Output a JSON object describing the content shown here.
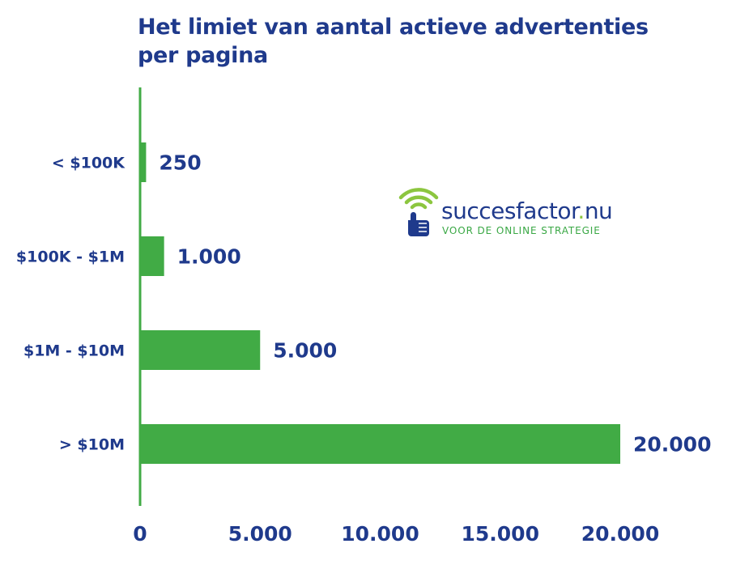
{
  "title_lines": [
    "Het limiet van aantal actieve advertenties",
    "per pagina"
  ],
  "logo": {
    "brand": "succesfactor",
    "dot": ".",
    "tld": "nu",
    "tagline": "VOOR DE ONLINE STRATEGIE"
  },
  "colors": {
    "bar": "#41ab45",
    "axis": "#41ab45",
    "text": "#1f3a8c",
    "logo_wifi": "#8cc63f"
  },
  "chart_data": {
    "type": "bar",
    "orientation": "horizontal",
    "title": "Het limiet van aantal actieve advertenties per pagina",
    "categories": [
      "< $100K",
      "$100K - $1M",
      "$1M - $10M",
      "> $10M"
    ],
    "values": [
      250,
      1000,
      5000,
      20000
    ],
    "value_labels": [
      "250",
      "1.000",
      "5.000",
      "20.000"
    ],
    "xlim": [
      0,
      20000
    ],
    "x_ticks": [
      0,
      5000,
      10000,
      15000,
      20000
    ],
    "x_tick_labels": [
      "0",
      "5.000",
      "10.000",
      "15.000",
      "20.000"
    ],
    "xlabel": "",
    "ylabel": "",
    "grid": false,
    "legend": "none"
  }
}
